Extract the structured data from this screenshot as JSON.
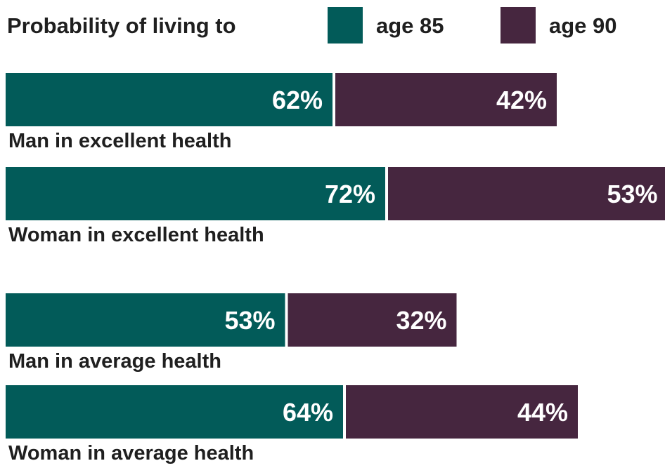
{
  "chart_data": {
    "type": "bar",
    "orientation": "horizontal",
    "stacked": true,
    "legend_title": "Probability of living to",
    "legend_position": "top",
    "categories": [
      "Man in excellent health",
      "Woman in excellent health",
      "Man in average health",
      "Woman in average health"
    ],
    "series": [
      {
        "name": "age 85",
        "color": "#025b59",
        "values": [
          62,
          72,
          53,
          64
        ]
      },
      {
        "name": "age 90",
        "color": "#46263f",
        "values": [
          42,
          53,
          32,
          44
        ]
      }
    ],
    "value_suffix": "%",
    "xlim": [
      0,
      125
    ],
    "grid": false
  }
}
